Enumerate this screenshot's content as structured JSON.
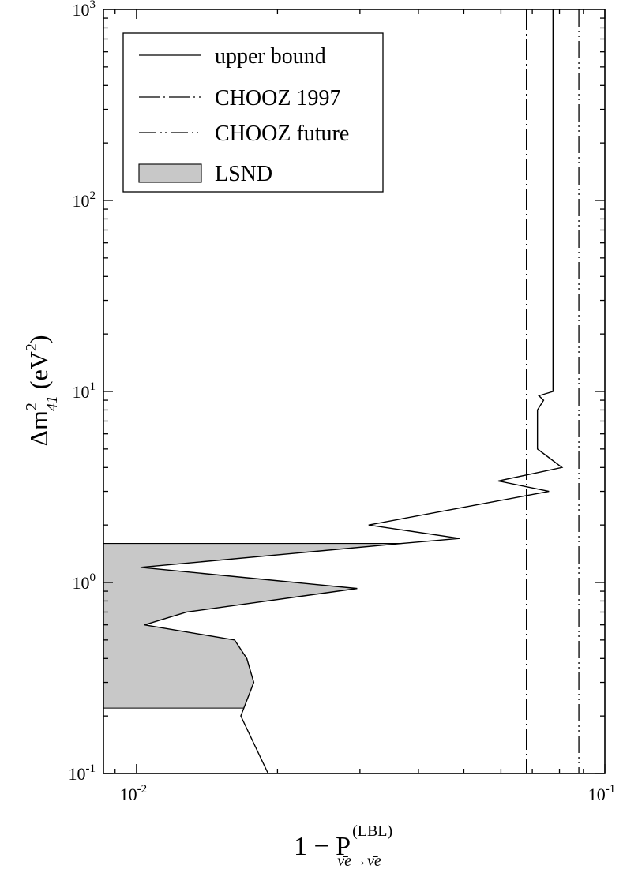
{
  "chart_data": {
    "type": "line",
    "xscale": "log",
    "yscale": "log",
    "xlim": [
      0.0085,
      0.1
    ],
    "ylim": [
      0.1,
      1000
    ],
    "xlabel": {
      "main": "1 − P",
      "superscript": "(LBL)",
      "subscript": "ν̄e→ν̄e"
    },
    "ylabel": {
      "main": "Δm",
      "sup": "2",
      "sub": "41",
      "unit": "(eV",
      "unit_sup": "2",
      "close": ")"
    },
    "x_ticks": [
      {
        "value": 0.01,
        "base": "10",
        "exp": "-2"
      },
      {
        "value": 0.1,
        "base": "10",
        "exp": "-1"
      }
    ],
    "y_ticks": [
      {
        "value": 0.1,
        "base": "10",
        "exp": "-1"
      },
      {
        "value": 1,
        "base": "10",
        "exp": "0"
      },
      {
        "value": 10,
        "base": "10",
        "exp": "1"
      },
      {
        "value": 100,
        "base": "10",
        "exp": "2"
      },
      {
        "value": 1000,
        "base": "10",
        "exp": "3"
      }
    ],
    "legend_position": "top-left",
    "legend": [
      {
        "label": "upper bound",
        "style": "solid"
      },
      {
        "label": "CHOOZ 1997",
        "style": "dashdot"
      },
      {
        "label": "CHOOZ future",
        "style": "dashdotdot"
      },
      {
        "label": "LSND",
        "style": "fill"
      }
    ],
    "series": [
      {
        "name": "upper bound",
        "style": "solid",
        "points": [
          [
            0.0191,
            0.1
          ],
          [
            0.0167,
            0.2
          ],
          [
            0.0178,
            0.3
          ],
          [
            0.0172,
            0.4
          ],
          [
            0.0162,
            0.5
          ],
          [
            0.0104,
            0.6
          ],
          [
            0.0128,
            0.7
          ],
          [
            0.0296,
            0.93
          ],
          [
            0.0102,
            1.2
          ],
          [
            0.0368,
            1.6
          ],
          [
            0.049,
            1.7
          ],
          [
            0.0313,
            2.0
          ],
          [
            0.076,
            3.0
          ],
          [
            0.0592,
            3.4
          ],
          [
            0.081,
            4.0
          ],
          [
            0.0718,
            5.0
          ],
          [
            0.0718,
            8.0
          ],
          [
            0.074,
            9.0
          ],
          [
            0.0723,
            9.5
          ],
          [
            0.0775,
            10.0
          ],
          [
            0.0775,
            1000
          ]
        ]
      },
      {
        "name": "CHOOZ 1997",
        "style": "dashdot",
        "x": 0.068
      },
      {
        "name": "CHOOZ future",
        "style": "dashdotdot",
        "x": 0.088
      }
    ],
    "region": {
      "name": "LSND",
      "color": "#c8c8c8",
      "y_range": [
        0.22,
        1.6
      ]
    }
  }
}
